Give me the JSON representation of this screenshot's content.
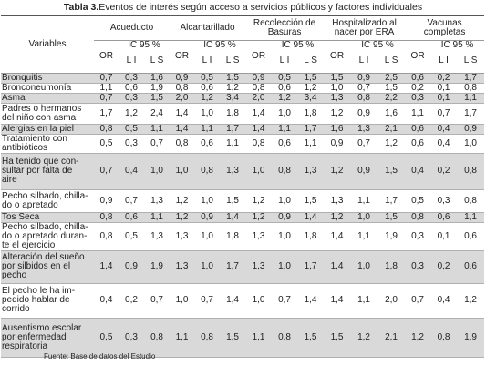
{
  "title": {
    "label": "Tabla 3.",
    "text": "Eventos de interés según acceso a servicios públicos y factores individuales"
  },
  "header": {
    "variables": "Variables",
    "groups": [
      "Acueducto",
      "Alcantarillado",
      "Recolección de Basuras",
      "Hospitalizado al nacer por ERA",
      "Vacunas completas"
    ],
    "or": "OR",
    "ic": "IC 95 %",
    "li": "L I",
    "ls": "L S"
  },
  "table": {
    "rows": [
      {
        "label": "Bronquitis",
        "values": [
          "0,7",
          "0,3",
          "1,6",
          "0,9",
          "0,5",
          "1,5",
          "0,9",
          "0,5",
          "1,5",
          "1,5",
          "0,9",
          "2,5",
          "0,6",
          "0,2",
          "1,7"
        ]
      },
      {
        "label": "Bronconeumonía",
        "values": [
          "1,1",
          "0,6",
          "1,9",
          "0,8",
          "0,6",
          "1,2",
          "0,8",
          "0,6",
          "1,2",
          "1,0",
          "0,7",
          "1,5",
          "0,2",
          "0,1",
          "0,8"
        ]
      },
      {
        "label": "Asma",
        "values": [
          "0,7",
          "0,3",
          "1,5",
          "2,0",
          "1,2",
          "3,4",
          "2,0",
          "1,2",
          "3,4",
          "1,3",
          "0,8",
          "2,2",
          "0,3",
          "0,1",
          "1,1"
        ]
      },
      {
        "label": "Padres o hermanos\ndel niño con asma",
        "values": [
          "1,7",
          "1,2",
          "2,4",
          "1,4",
          "1,0",
          "1,8",
          "1,4",
          "1,0",
          "1,8",
          "1,2",
          "0,9",
          "1,6",
          "1,1",
          "0,7",
          "1,7"
        ]
      },
      {
        "label": "Alergias en la piel",
        "values": [
          "0,8",
          "0,5",
          "1,1",
          "1,4",
          "1,1",
          "1,7",
          "1,4",
          "1,1",
          "1,7",
          "1,6",
          "1,3",
          "2,1",
          "0,6",
          "0,4",
          "0,9"
        ]
      },
      {
        "label": "Tratamiento con\nantibióticos",
        "values": [
          "0,5",
          "0,3",
          "0,7",
          "0,8",
          "0,6",
          "1,1",
          "0,8",
          "0,6",
          "1,1",
          "0,9",
          "0,7",
          "1,2",
          "0,6",
          "0,4",
          "1,0"
        ]
      },
      {
        "label": "Ha tenido que con-\nsultar por falta de\naire",
        "values": [
          "0,7",
          "0,4",
          "1,0",
          "1,0",
          "0,8",
          "1,3",
          "1,0",
          "0,8",
          "1,3",
          "1,2",
          "0,9",
          "1,5",
          "0,4",
          "0,2",
          "0,8"
        ]
      },
      {
        "label": "Pecho silbado, chilla-\ndo o apretado",
        "values": [
          "0,9",
          "0,7",
          "1,3",
          "1,2",
          "1,0",
          "1,5",
          "1,2",
          "1,0",
          "1,5",
          "1,3",
          "1,1",
          "1,7",
          "0,5",
          "0,3",
          "0,8"
        ]
      },
      {
        "label": "Tos Seca",
        "values": [
          "0,8",
          "0,6",
          "1,1",
          "1,2",
          "0,9",
          "1,4",
          "1,2",
          "0,9",
          "1,4",
          "1,2",
          "1,0",
          "1,5",
          "0,8",
          "0,6",
          "1,1"
        ]
      },
      {
        "label": "Pecho silbado, chilla-\ndo o apretado duran-\nte el ejercicio",
        "values": [
          "0,8",
          "0,5",
          "1,3",
          "1,3",
          "1,0",
          "1,8",
          "1,3",
          "1,0",
          "1,8",
          "1,4",
          "1,1",
          "1,9",
          "0,3",
          "0,1",
          "0,6"
        ]
      },
      {
        "label": "Alteración del sueño\npor silbidos en el\npecho",
        "values": [
          "1,4",
          "0,9",
          "1,9",
          "1,3",
          "1,0",
          "1,7",
          "1,3",
          "1,0",
          "1,7",
          "1,4",
          "1,0",
          "1,8",
          "0,3",
          "0,2",
          "0,6"
        ]
      },
      {
        "label": "El pecho le ha im-\npedido hablar de\ncorrido",
        "values": [
          "0,4",
          "0,2",
          "0,7",
          "1,0",
          "0,7",
          "1,4",
          "1,0",
          "0,7",
          "1,4",
          "1,4",
          "1,1",
          "2,0",
          "0,7",
          "0,4",
          "1,2"
        ]
      },
      {
        "label": "Ausentismo escolar\npor enfermedad\nrespiratoria",
        "values": [
          "0,5",
          "0,3",
          "0,8",
          "1,1",
          "0,8",
          "1,5",
          "1,1",
          "0,8",
          "1,5",
          "1,5",
          "1,2",
          "2,1",
          "1,2",
          "0,8",
          "1,9"
        ]
      }
    ]
  },
  "footer": {
    "source": "Fuente: Base de datos del Estudio"
  }
}
